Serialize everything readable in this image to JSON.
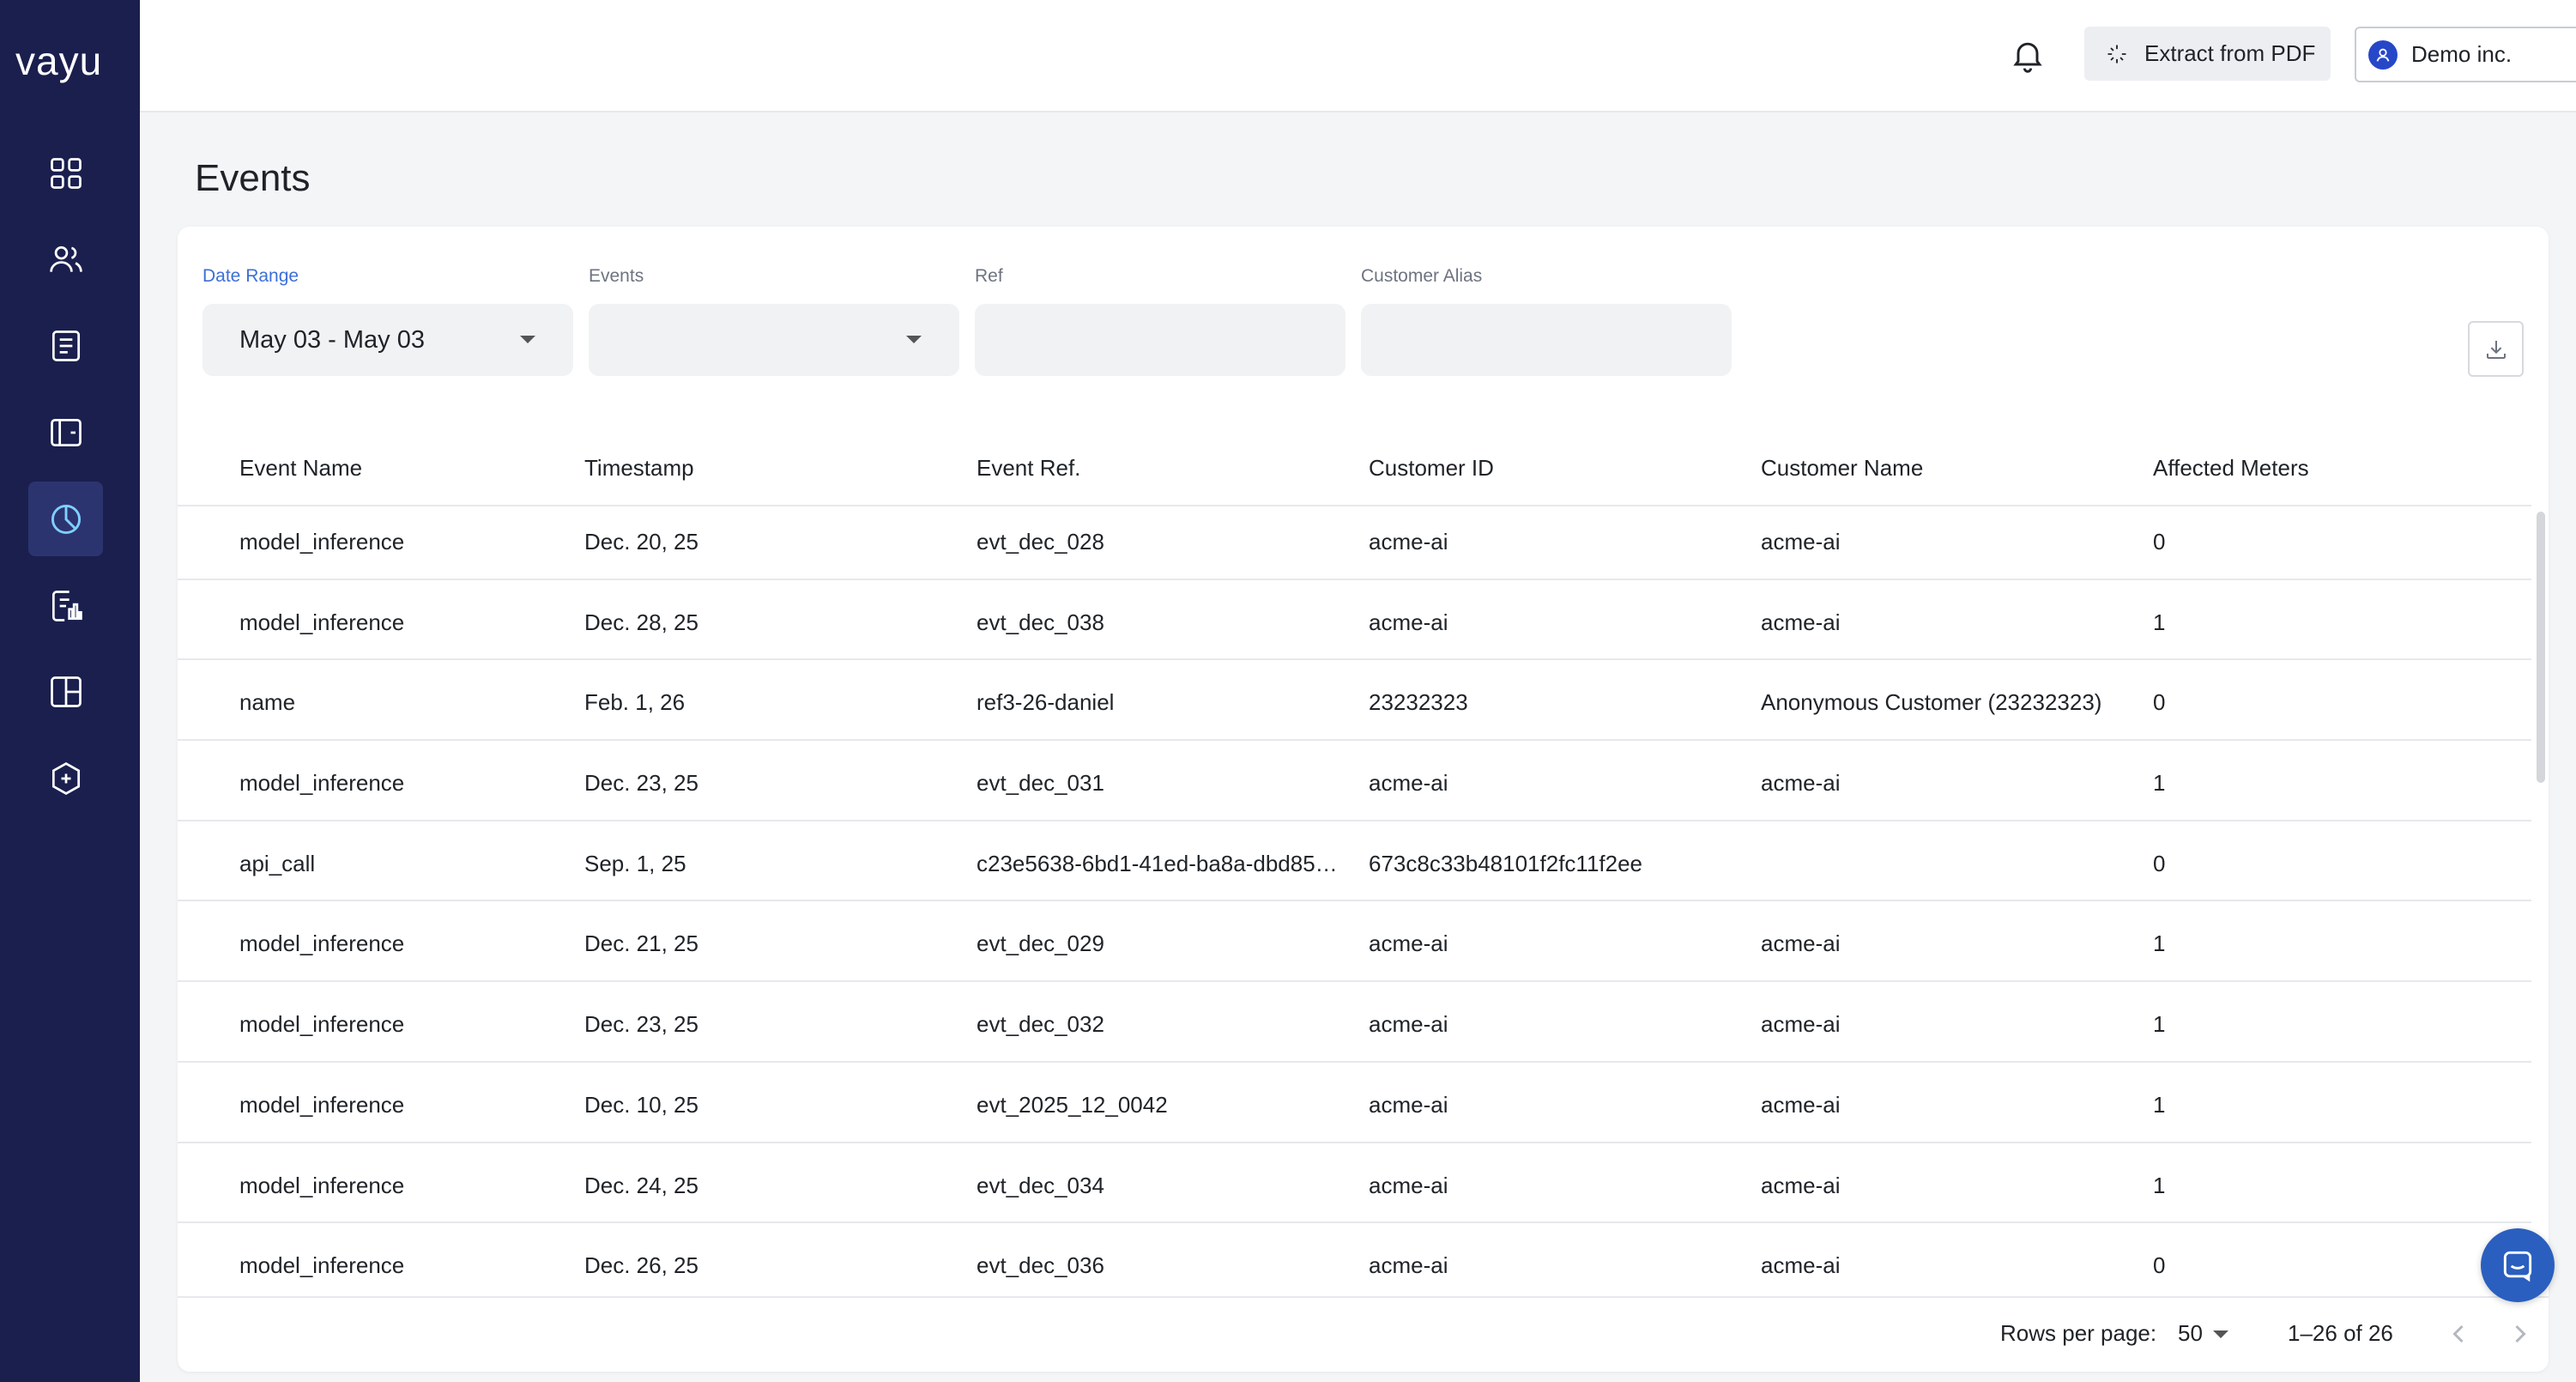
{
  "app": {
    "logo_text": "vayu",
    "accent_color": "#1a1f4e",
    "active_nav": "analytics"
  },
  "sidebar": {
    "items": [
      {
        "name": "dashboard",
        "icon": "grid-icon"
      },
      {
        "name": "customers",
        "icon": "users-icon"
      },
      {
        "name": "invoices",
        "icon": "receipt-icon"
      },
      {
        "name": "wallet",
        "icon": "wallet-icon"
      },
      {
        "name": "analytics",
        "icon": "pie-chart-icon"
      },
      {
        "name": "reports",
        "icon": "report-icon"
      },
      {
        "name": "layouts",
        "icon": "layout-icon"
      },
      {
        "name": "integrations",
        "icon": "package-plus-icon"
      }
    ]
  },
  "topbar": {
    "extract_label": "Extract from PDF",
    "org_name": "Demo inc."
  },
  "page": {
    "title": "Events"
  },
  "filters": {
    "date_range_label": "Date Range",
    "date_range_value": "May 03 - May 03",
    "events_label": "Events",
    "events_value": "",
    "ref_label": "Ref",
    "ref_value": "",
    "customer_alias_label": "Customer Alias",
    "customer_alias_value": ""
  },
  "table": {
    "columns": [
      "Event Name",
      "Timestamp",
      "Event Ref.",
      "Customer ID",
      "Customer Name",
      "Affected Meters"
    ],
    "rows": [
      [
        "model_inference",
        "Dec. 20, 25",
        "evt_dec_028",
        "acme-ai",
        "acme-ai",
        "0"
      ],
      [
        "model_inference",
        "Dec. 28, 25",
        "evt_dec_038",
        "acme-ai",
        "acme-ai",
        "1"
      ],
      [
        "name",
        "Feb. 1, 26",
        "ref3-26-daniel",
        "23232323",
        "Anonymous Customer (23232323)",
        "0"
      ],
      [
        "model_inference",
        "Dec. 23, 25",
        "evt_dec_031",
        "acme-ai",
        "acme-ai",
        "1"
      ],
      [
        "api_call",
        "Sep. 1, 25",
        "c23e5638-6bd1-41ed-ba8a-dbd85…",
        "673c8c33b48101f2fc11f2ee",
        "",
        "0"
      ],
      [
        "model_inference",
        "Dec. 21, 25",
        "evt_dec_029",
        "acme-ai",
        "acme-ai",
        "1"
      ],
      [
        "model_inference",
        "Dec. 23, 25",
        "evt_dec_032",
        "acme-ai",
        "acme-ai",
        "1"
      ],
      [
        "model_inference",
        "Dec. 10, 25",
        "evt_2025_12_0042",
        "acme-ai",
        "acme-ai",
        "1"
      ],
      [
        "model_inference",
        "Dec. 24, 25",
        "evt_dec_034",
        "acme-ai",
        "acme-ai",
        "1"
      ],
      [
        "model_inference",
        "Dec. 26, 25",
        "evt_dec_036",
        "acme-ai",
        "acme-ai",
        "0"
      ]
    ]
  },
  "pagination": {
    "rows_per_page_label": "Rows per page:",
    "rows_per_page_value": "50",
    "range_text": "1–26 of 26"
  }
}
